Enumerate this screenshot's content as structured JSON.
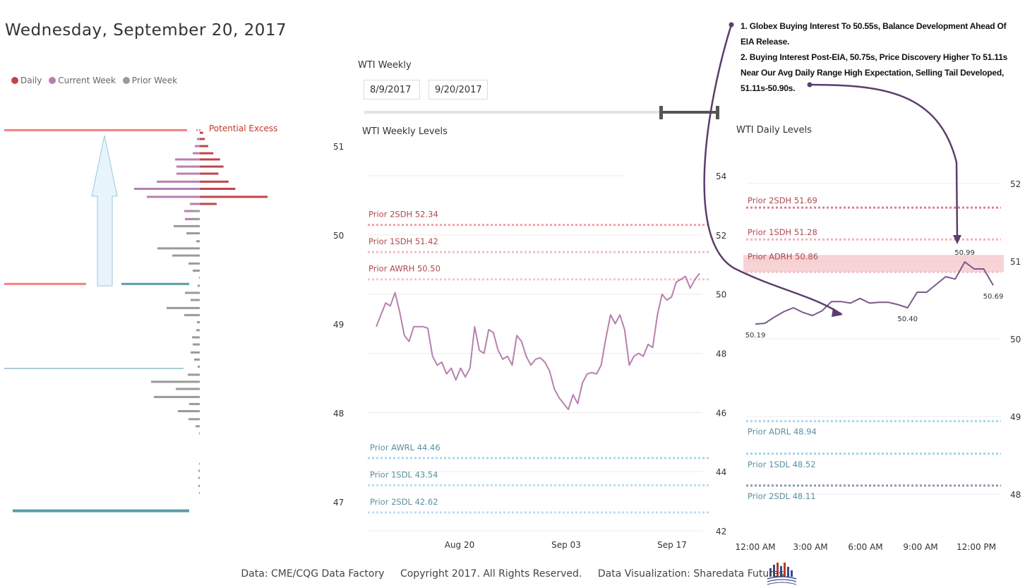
{
  "header": {
    "date_title": "Wednesday, September 20, 2017"
  },
  "legend": {
    "items": [
      {
        "label": "Daily",
        "color": "#c0454a"
      },
      {
        "label": "Current Week",
        "color": "#b880b0"
      },
      {
        "label": "Prior Week",
        "color": "#9a9a9a"
      }
    ]
  },
  "weekly": {
    "panel_label": "WTI Weekly",
    "start_date": "8/9/2017",
    "end_date": "9/20/2017"
  },
  "annotation": {
    "lines": [
      "1. Globex Buying Interest To 50.55s, Balance Development Ahead Of",
      "EIA Release.",
      "2. Buying Interest Post-EIA, 50.75s, Price Discovery Higher To 51.11s",
      "Near Our Avg Daily Range High Expectation, Selling Tail Developed,",
      "51.11s-50.90s."
    ]
  },
  "footer": {
    "data": "Data: CME/CQG Data Factory",
    "copyright": "Copyright 2017. All Rights Reserved.",
    "visualization": "Data Visualization: Sharedata Futures"
  },
  "colors": {
    "daily": "#c0454a",
    "current_week": "#b880b0",
    "prior_week": "#9a9a9a",
    "excess_line": "#f08080",
    "support_line": "#5a9aa8"
  },
  "chart_data": [
    {
      "type": "bar",
      "orientation": "horizontal",
      "ylim": [
        46.85,
        51.2
      ],
      "y_ticks": [
        51,
        50,
        49,
        48,
        47
      ],
      "annotations": [
        "Potential Excess"
      ],
      "reference_lines": [
        51.18,
        49.45,
        48.5,
        46.9
      ],
      "daily": [
        {
          "price": 51.15,
          "value": 2
        },
        {
          "price": 51.08,
          "value": 3
        },
        {
          "price": 51.0,
          "value": 5
        },
        {
          "price": 50.92,
          "value": 8
        },
        {
          "price": 50.85,
          "value": 12
        },
        {
          "price": 50.77,
          "value": 14
        },
        {
          "price": 50.69,
          "value": 11
        },
        {
          "price": 50.6,
          "value": 17
        },
        {
          "price": 50.52,
          "value": 21
        },
        {
          "price": 50.43,
          "value": 40
        },
        {
          "price": 50.35,
          "value": 10
        }
      ],
      "current_week": [
        {
          "price": 51.08,
          "value": 4
        },
        {
          "price": 51.0,
          "value": 7
        },
        {
          "price": 50.92,
          "value": 10
        },
        {
          "price": 50.85,
          "value": 35
        },
        {
          "price": 50.77,
          "value": 33
        },
        {
          "price": 50.69,
          "value": 33
        },
        {
          "price": 50.6,
          "value": 61
        },
        {
          "price": 50.52,
          "value": 93
        },
        {
          "price": 50.43,
          "value": 75
        },
        {
          "price": 50.35,
          "value": 14
        },
        {
          "price": 50.27,
          "value": 22
        },
        {
          "price": 50.18,
          "value": 21
        }
      ],
      "prior_week": [
        {
          "price": 50.27,
          "value": 9
        },
        {
          "price": 50.18,
          "value": 10
        },
        {
          "price": 50.1,
          "value": 37
        },
        {
          "price": 50.02,
          "value": 19
        },
        {
          "price": 49.93,
          "value": 5
        },
        {
          "price": 49.85,
          "value": 60
        },
        {
          "price": 49.77,
          "value": 39
        },
        {
          "price": 49.68,
          "value": 16
        },
        {
          "price": 49.6,
          "value": 10
        },
        {
          "price": 49.52,
          "value": 1
        },
        {
          "price": 49.43,
          "value": 3
        },
        {
          "price": 49.35,
          "value": 21
        },
        {
          "price": 49.27,
          "value": 13
        },
        {
          "price": 49.18,
          "value": 47
        },
        {
          "price": 49.1,
          "value": 22
        },
        {
          "price": 49.02,
          "value": 4
        },
        {
          "price": 48.93,
          "value": 5
        },
        {
          "price": 48.85,
          "value": 11
        },
        {
          "price": 48.77,
          "value": 10
        },
        {
          "price": 48.68,
          "value": 13
        },
        {
          "price": 48.6,
          "value": 8
        },
        {
          "price": 48.52,
          "value": 3
        },
        {
          "price": 48.43,
          "value": 17
        },
        {
          "price": 48.35,
          "value": 69
        },
        {
          "price": 48.27,
          "value": 34
        },
        {
          "price": 48.18,
          "value": 65
        },
        {
          "price": 48.1,
          "value": 15
        },
        {
          "price": 48.02,
          "value": 31
        },
        {
          "price": 47.93,
          "value": 16
        },
        {
          "price": 47.85,
          "value": 6
        },
        {
          "price": 47.77,
          "value": 1
        },
        {
          "price": 47.43,
          "value": 1
        },
        {
          "price": 47.35,
          "value": 2
        },
        {
          "price": 47.27,
          "value": 2
        },
        {
          "price": 47.18,
          "value": 2
        },
        {
          "price": 47.1,
          "value": 1
        }
      ]
    },
    {
      "type": "line",
      "title": "WTI Weekly Levels",
      "x_ticks": [
        "Aug 20",
        "Sep 03",
        "Sep 17"
      ],
      "y_ticks": [
        54,
        52,
        50,
        48,
        46,
        44,
        42
      ],
      "ylim": [
        42,
        54
      ],
      "levels": [
        {
          "label": "Prior 2SDH 52.34",
          "value": 52.34,
          "color": "#f4a0a8"
        },
        {
          "label": "Prior 1SDH 51.42",
          "value": 51.42,
          "color": "#f7bcc2"
        },
        {
          "label": "Prior AWRH 50.50",
          "value": 50.5,
          "color": "#f7c4c8"
        },
        {
          "label": "Prior AWRL 44.46",
          "value": 44.46,
          "color": "#a8d8ec"
        },
        {
          "label": "Prior 1SDL 43.54",
          "value": 43.54,
          "color": "#b8e0f0"
        },
        {
          "label": "Prior 2SDL 42.62",
          "value": 42.62,
          "color": "#b8e0f0"
        }
      ],
      "series": [
        {
          "color": "#b880b0",
          "y": [
            48.9,
            49.3,
            49.7,
            49.6,
            50.05,
            49.4,
            48.6,
            48.4,
            48.9,
            48.9,
            48.9,
            48.85,
            47.9,
            47.6,
            47.7,
            47.3,
            47.5,
            47.1,
            47.5,
            47.2,
            47.5,
            48.9,
            48.1,
            48.0,
            48.8,
            48.7,
            48.1,
            47.8,
            47.9,
            47.6,
            48.6,
            48.4,
            47.9,
            47.6,
            47.8,
            47.85,
            47.7,
            47.4,
            46.8,
            46.5,
            46.3,
            46.1,
            46.6,
            46.3,
            47.0,
            47.3,
            47.35,
            47.3,
            47.6,
            48.5,
            49.3,
            49.0,
            49.3,
            48.8,
            47.6,
            47.9,
            48.0,
            47.9,
            48.3,
            48.2,
            49.3,
            50.0,
            49.8,
            49.9,
            50.4,
            50.5,
            50.6,
            50.2,
            50.5,
            50.7
          ]
        }
      ]
    },
    {
      "type": "line",
      "title": "WTI Daily Levels",
      "x_ticks": [
        "12:00 AM",
        "3:00 AM",
        "6:00 AM",
        "9:00 AM",
        "12:00 PM"
      ],
      "y_ticks": [
        52,
        51,
        50,
        49,
        48
      ],
      "ylim": [
        47.6,
        52.1
      ],
      "levels": [
        {
          "label": "Prior 2SDH 51.69",
          "value": 51.69,
          "color": "#d98090"
        },
        {
          "label": "Prior 1SDH 51.28",
          "value": 51.28,
          "color": "#f2b0b8"
        },
        {
          "label": "Prior ADRH 50.86",
          "value": 50.86,
          "color": "#f4c0c4"
        },
        {
          "label": "Prior ADRL 48.94",
          "value": 48.94,
          "color": "#a8d8ec"
        },
        {
          "label": "Prior 1SDL 48.52",
          "value": 48.52,
          "color": "#9ed4ea"
        },
        {
          "label": "Prior 2SDL 48.11",
          "value": 48.11,
          "color": "#8a9ab0"
        }
      ],
      "ranges": [
        {
          "from": 50.86,
          "to": 51.08,
          "color": "#f4c0c4"
        }
      ],
      "series": [
        {
          "color": "#7a5a8a",
          "x": [
            0,
            0.5,
            1,
            1.5,
            2,
            2.5,
            3,
            3.5,
            4,
            4.5,
            5,
            5.5,
            6,
            6.5,
            7,
            7.5,
            8,
            8.5,
            9,
            9.5,
            10,
            10.5,
            11,
            11.5,
            12,
            12.5
          ],
          "y": [
            50.19,
            50.2,
            50.28,
            50.35,
            50.4,
            50.34,
            50.3,
            50.36,
            50.48,
            50.48,
            50.46,
            50.52,
            50.46,
            50.47,
            50.47,
            50.44,
            50.4,
            50.6,
            50.6,
            50.7,
            50.8,
            50.77,
            50.99,
            50.9,
            50.9,
            50.69
          ]
        }
      ],
      "data_labels": [
        {
          "text": "50.19",
          "x": 0,
          "y": 50.19
        },
        {
          "text": "50.40",
          "x": 8,
          "y": 50.4
        },
        {
          "text": "50.99",
          "x": 11,
          "y": 50.99
        },
        {
          "text": "50.69",
          "x": 12.5,
          "y": 50.69
        }
      ]
    }
  ]
}
